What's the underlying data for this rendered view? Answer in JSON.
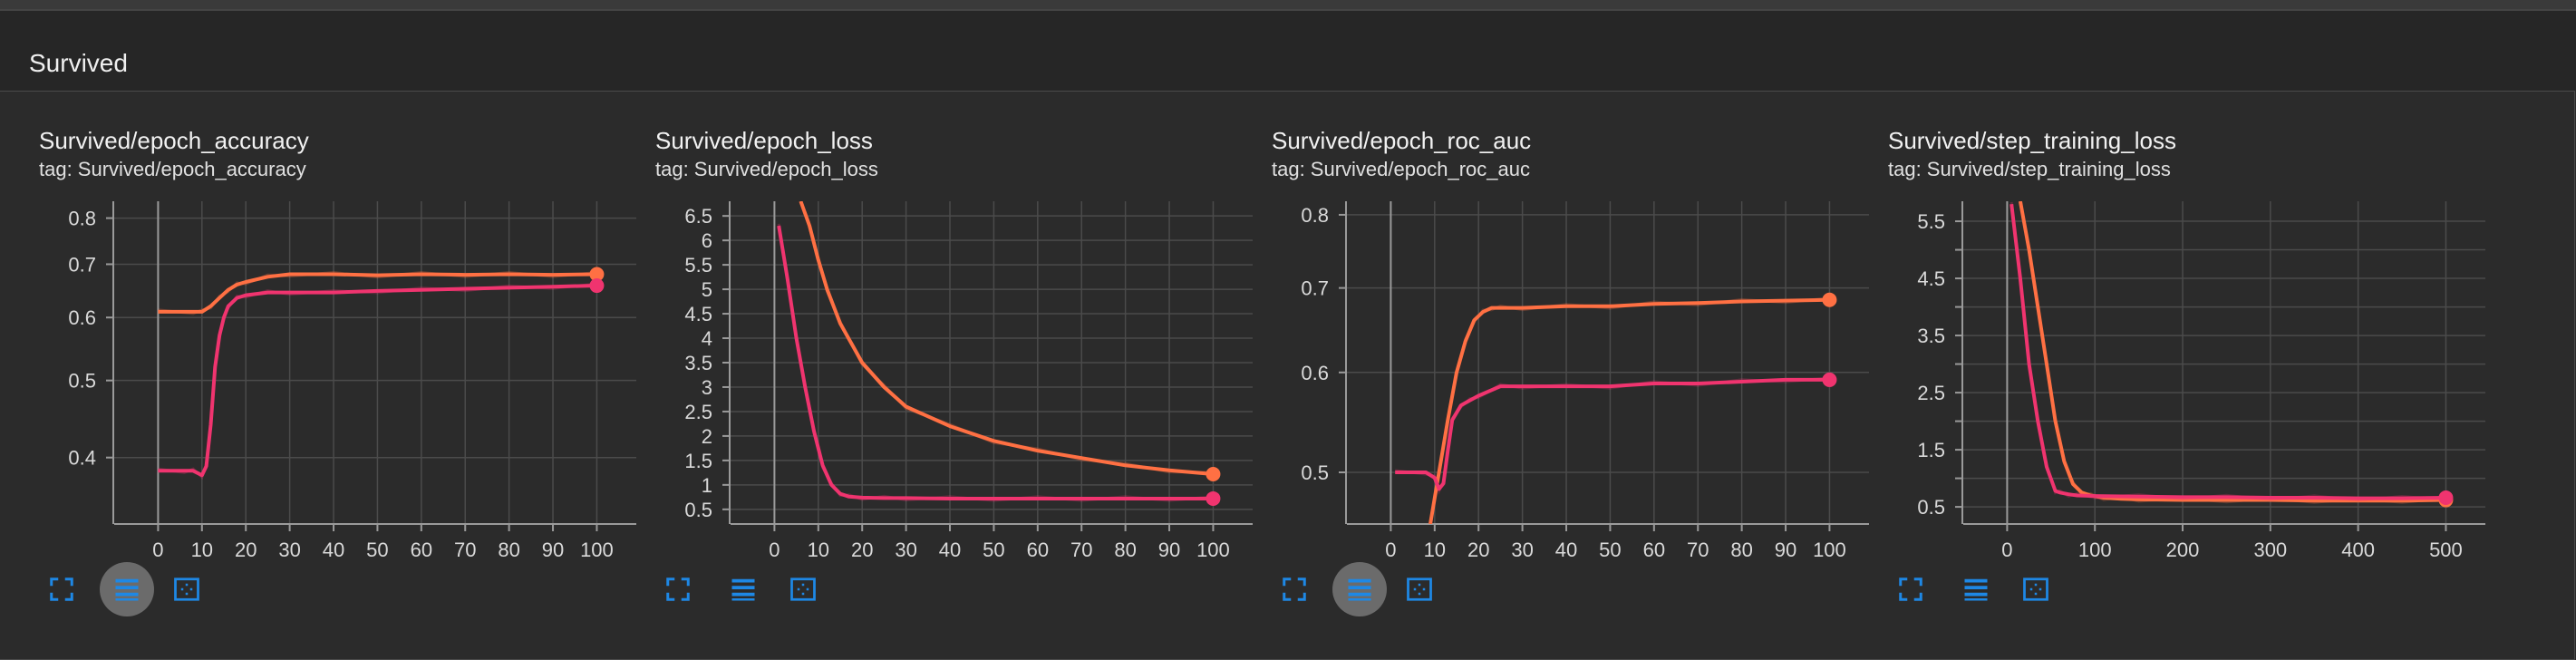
{
  "section": {
    "title": "Survived"
  },
  "colors": {
    "orange": "#ff7043",
    "pink": "#f0346f",
    "accent": "#1e88e5"
  },
  "icons": [
    "fullscreen-icon",
    "data-selection-icon",
    "fit-domain-icon"
  ],
  "cards": [
    {
      "title": "Survived/epoch_accuracy",
      "tag": "tag: Survived/epoch_accuracy",
      "log_scale": true,
      "active_button": 1
    },
    {
      "title": "Survived/epoch_loss",
      "tag": "tag: Survived/epoch_loss",
      "log_scale": false,
      "active_button": -1
    },
    {
      "title": "Survived/epoch_roc_auc",
      "tag": "tag: Survived/epoch_roc_auc",
      "log_scale": true,
      "active_button": 1
    },
    {
      "title": "Survived/step_training_loss",
      "tag": "tag: Survived/step_training_loss",
      "log_scale": false,
      "active_button": -1
    }
  ],
  "chart_data": [
    {
      "type": "line",
      "title": "Survived/epoch_accuracy",
      "xlim": [
        -10,
        109
      ],
      "ylim": [
        0.33,
        0.84
      ],
      "y_scale": "log",
      "xticks": [
        0,
        10,
        20,
        30,
        40,
        50,
        60,
        70,
        80,
        90,
        100
      ],
      "yticks": [
        0.4,
        0.5,
        0.6,
        0.7,
        0.8
      ],
      "ytick_labels": [
        "0.4",
        "0.5",
        "0.6",
        "0.7",
        "0.8"
      ],
      "series": [
        {
          "color": "#ff7043",
          "x": [
            0,
            8,
            10,
            12,
            14,
            16,
            18,
            20,
            25,
            30,
            40,
            50,
            60,
            70,
            80,
            90,
            100
          ],
          "y": [
            0.61,
            0.61,
            0.61,
            0.62,
            0.635,
            0.65,
            0.66,
            0.665,
            0.675,
            0.68,
            0.68,
            0.678,
            0.68,
            0.679,
            0.68,
            0.679,
            0.68
          ]
        },
        {
          "color": "#f0346f",
          "x": [
            0,
            6,
            8,
            10,
            11,
            12,
            13,
            14,
            15,
            16,
            18,
            20,
            25,
            30,
            40,
            50,
            60,
            70,
            80,
            90,
            100
          ],
          "y": [
            0.385,
            0.385,
            0.385,
            0.38,
            0.39,
            0.44,
            0.52,
            0.57,
            0.6,
            0.62,
            0.635,
            0.64,
            0.645,
            0.645,
            0.645,
            0.648,
            0.65,
            0.652,
            0.654,
            0.656,
            0.658
          ]
        }
      ]
    },
    {
      "type": "line",
      "title": "Survived/epoch_loss",
      "xlim": [
        -10,
        109
      ],
      "ylim": [
        0.2,
        6.8
      ],
      "y_scale": "linear",
      "xticks": [
        0,
        10,
        20,
        30,
        40,
        50,
        60,
        70,
        80,
        90,
        100
      ],
      "yticks": [
        0.5,
        1,
        1.5,
        2,
        2.5,
        3,
        3.5,
        4,
        4.5,
        5,
        5.5,
        6,
        6.5
      ],
      "ytick_labels": [
        "0.5",
        "1",
        "1.5",
        "2",
        "2.5",
        "3",
        "3.5",
        "4",
        "4.5",
        "5",
        "5.5",
        "6",
        "6.5"
      ],
      "series": [
        {
          "color": "#ff7043",
          "x": [
            6,
            8,
            10,
            12,
            15,
            20,
            25,
            30,
            40,
            50,
            60,
            70,
            80,
            90,
            100
          ],
          "y": [
            6.8,
            6.3,
            5.6,
            5.0,
            4.3,
            3.5,
            3.0,
            2.6,
            2.2,
            1.9,
            1.7,
            1.55,
            1.4,
            1.3,
            1.22
          ]
        },
        {
          "color": "#f0346f",
          "x": [
            1,
            3,
            5,
            7,
            9,
            11,
            13,
            15,
            17,
            20,
            25,
            30,
            40,
            50,
            60,
            70,
            80,
            90,
            100
          ],
          "y": [
            6.3,
            5.2,
            4.0,
            3.0,
            2.1,
            1.4,
            1.0,
            0.82,
            0.76,
            0.74,
            0.73,
            0.73,
            0.72,
            0.72,
            0.72,
            0.72,
            0.72,
            0.72,
            0.72
          ]
        }
      ]
    },
    {
      "type": "line",
      "title": "Survived/epoch_roc_auc",
      "xlim": [
        -10,
        109
      ],
      "ylim": [
        0.455,
        0.82
      ],
      "y_scale": "log",
      "xticks": [
        0,
        10,
        20,
        30,
        40,
        50,
        60,
        70,
        80,
        90,
        100
      ],
      "yticks": [
        0.5,
        0.6,
        0.7,
        0.8
      ],
      "ytick_labels": [
        "0.5",
        "0.6",
        "0.7",
        "0.8"
      ],
      "series": [
        {
          "color": "#ff7043",
          "x": [
            9,
            11,
            13,
            15,
            17,
            19,
            21,
            23,
            25,
            30,
            40,
            50,
            60,
            70,
            80,
            90,
            100
          ],
          "y": [
            0.455,
            0.5,
            0.55,
            0.6,
            0.635,
            0.66,
            0.67,
            0.675,
            0.675,
            0.675,
            0.677,
            0.677,
            0.68,
            0.681,
            0.683,
            0.684,
            0.685
          ]
        },
        {
          "color": "#f0346f",
          "x": [
            1,
            8,
            10,
            11,
            12,
            13,
            14,
            16,
            18,
            20,
            25,
            30,
            40,
            50,
            60,
            70,
            80,
            90,
            100
          ],
          "y": [
            0.5,
            0.5,
            0.495,
            0.485,
            0.49,
            0.52,
            0.55,
            0.565,
            0.57,
            0.575,
            0.585,
            0.585,
            0.585,
            0.585,
            0.588,
            0.588,
            0.59,
            0.592,
            0.592
          ]
        }
      ]
    },
    {
      "type": "line",
      "title": "Survived/step_training_loss",
      "xlim": [
        -50,
        545
      ],
      "ylim": [
        0.2,
        5.85
      ],
      "y_scale": "linear",
      "xticks": [
        0,
        100,
        200,
        300,
        400,
        500
      ],
      "yticks": [
        0.5,
        1,
        1.5,
        2,
        2.5,
        3,
        3.5,
        4,
        4.5,
        5,
        5.5
      ],
      "ytick_labels": [
        "0.5",
        "",
        "1.5",
        "",
        "2.5",
        "",
        "3.5",
        "",
        "4.5",
        "",
        "5.5"
      ],
      "series": [
        {
          "color": "#ff7043",
          "x": [
            15,
            25,
            35,
            45,
            55,
            65,
            75,
            85,
            95,
            110,
            130,
            150,
            200,
            250,
            300,
            350,
            400,
            450,
            500
          ],
          "y": [
            5.85,
            5.0,
            4.0,
            3.0,
            2.0,
            1.3,
            0.9,
            0.75,
            0.7,
            0.66,
            0.64,
            0.63,
            0.62,
            0.62,
            0.62,
            0.61,
            0.61,
            0.61,
            0.62
          ]
        },
        {
          "color": "#f0346f",
          "x": [
            5,
            15,
            25,
            35,
            45,
            55,
            60,
            70,
            80,
            100,
            150,
            200,
            250,
            300,
            350,
            400,
            450,
            500
          ],
          "y": [
            5.8,
            4.5,
            3.0,
            2.0,
            1.2,
            0.78,
            0.75,
            0.72,
            0.7,
            0.69,
            0.68,
            0.67,
            0.67,
            0.66,
            0.66,
            0.65,
            0.65,
            0.66
          ]
        }
      ]
    }
  ]
}
